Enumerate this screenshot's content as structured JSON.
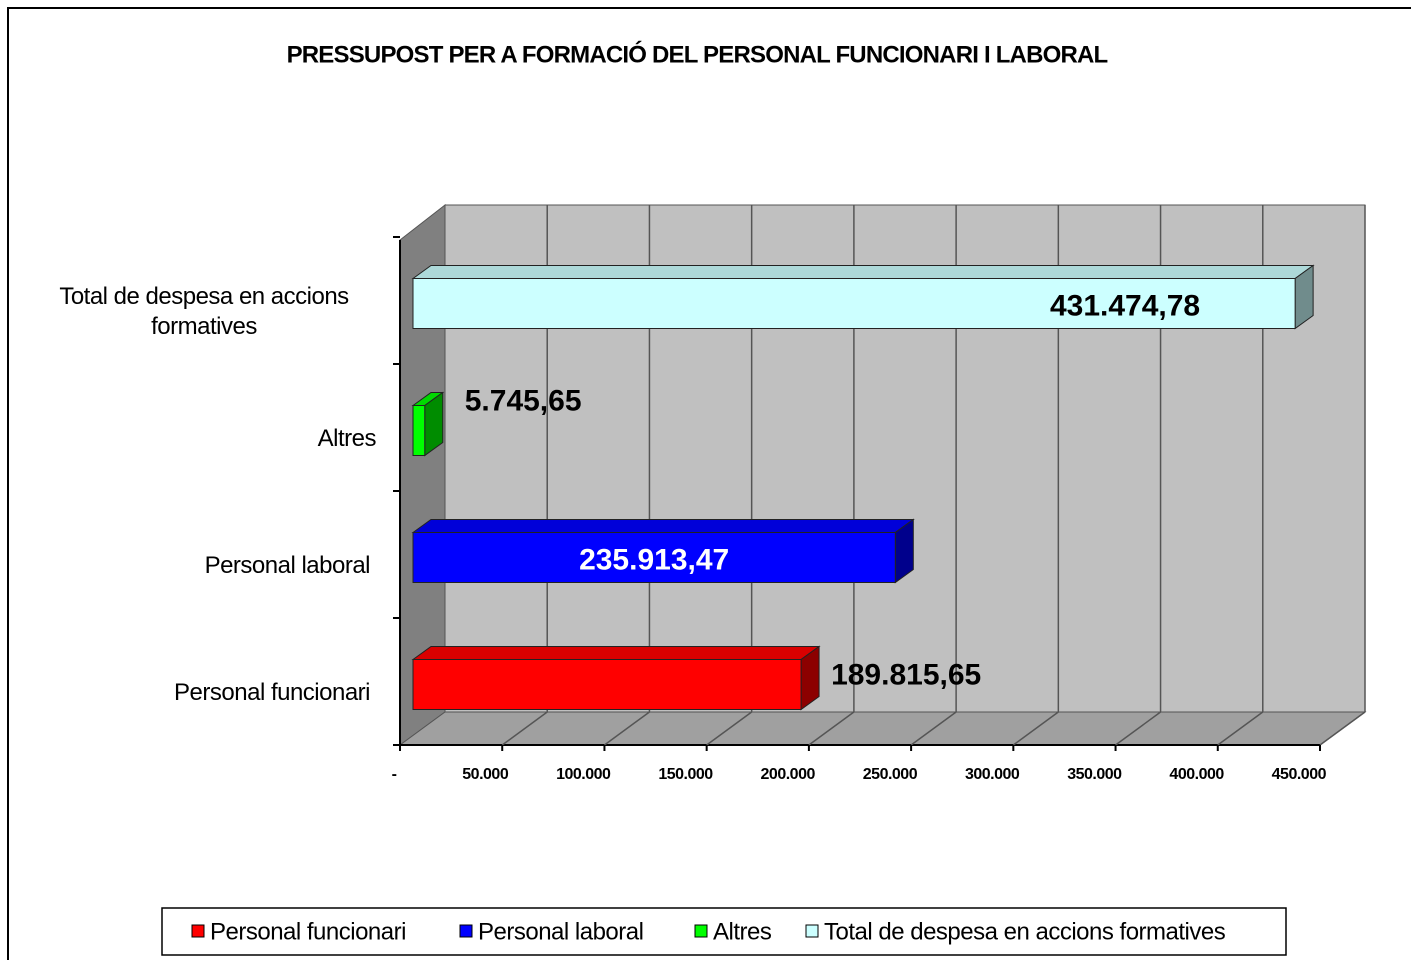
{
  "chart_data": {
    "type": "bar",
    "orientation": "horizontal",
    "three_d": true,
    "title": "PRESSUPOST PER A FORMACIÓ DEL PERSONAL FUNCIONARI I LABORAL",
    "categories": [
      "Personal funcionari",
      "Personal laboral",
      "Altres",
      "Total de despesa en accions formatives"
    ],
    "values": [
      189815.65,
      235913.47,
      5745.65,
      431474.78
    ],
    "value_labels": [
      "189.815,65",
      "235.913,47",
      "5.745,65",
      "431.474,78"
    ],
    "colors": [
      "#ff0000",
      "#0000ff",
      "#00ff00",
      "#ccffff"
    ],
    "xlim": [
      0,
      450000
    ],
    "xticks": [
      {
        "value": 0,
        "label": "-"
      },
      {
        "value": 50000,
        "label": "50.000"
      },
      {
        "value": 100000,
        "label": "100.000"
      },
      {
        "value": 150000,
        "label": "150.000"
      },
      {
        "value": 200000,
        "label": "200.000"
      },
      {
        "value": 250000,
        "label": "250.000"
      },
      {
        "value": 300000,
        "label": "300.000"
      },
      {
        "value": 350000,
        "label": "350.000"
      },
      {
        "value": 400000,
        "label": "400.000"
      },
      {
        "value": 450000,
        "label": "450.000"
      }
    ],
    "grid": true,
    "legend": "bottom"
  }
}
